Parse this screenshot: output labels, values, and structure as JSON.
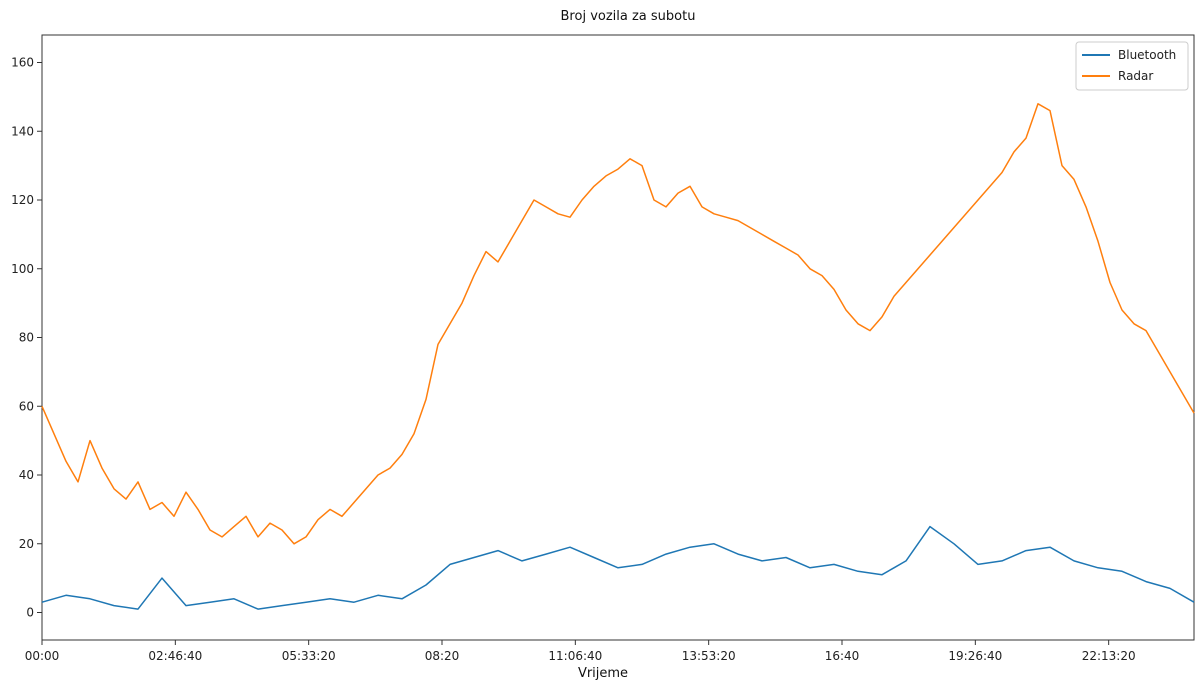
{
  "chart_data": {
    "type": "line",
    "title": "Broj vozila za subotu",
    "xlabel": "Vrijeme",
    "ylabel": "",
    "xlim": [
      0,
      86400
    ],
    "ylim": [
      -8,
      168
    ],
    "x_ticks": [
      {
        "value": 0,
        "label": "00:00"
      },
      {
        "value": 10000,
        "label": "02:46:40"
      },
      {
        "value": 20000,
        "label": "05:33:20"
      },
      {
        "value": 30000,
        "label": "08:20"
      },
      {
        "value": 40000,
        "label": "11:06:40"
      },
      {
        "value": 50000,
        "label": "13:53:20"
      },
      {
        "value": 60000,
        "label": "16:40"
      },
      {
        "value": 70000,
        "label": "19:26:40"
      },
      {
        "value": 80000,
        "label": "22:13:20"
      }
    ],
    "y_ticks": [
      0,
      20,
      40,
      60,
      80,
      100,
      120,
      140,
      160
    ],
    "grid": false,
    "legend_position": "top-right",
    "series": [
      {
        "name": "Bluetooth",
        "color": "#1f77b4",
        "x": [
          0,
          1800,
          3600,
          5400,
          7200,
          9000,
          10800,
          12600,
          14400,
          16200,
          18000,
          19800,
          21600,
          23400,
          25200,
          27000,
          28800,
          30600,
          32400,
          34200,
          36000,
          37800,
          39600,
          41400,
          43200,
          45000,
          46800,
          48600,
          50400,
          52200,
          54000,
          55800,
          57600,
          59400,
          61200,
          63000,
          63900,
          64800,
          66600,
          68400,
          70200,
          72000,
          73800,
          75600,
          77400,
          79200,
          81000,
          82800,
          84600,
          86400
        ],
        "y": [
          3,
          5,
          4,
          2,
          1,
          10,
          2,
          3,
          4,
          1,
          2,
          3,
          4,
          3,
          5,
          4,
          8,
          14,
          16,
          18,
          15,
          17,
          19,
          16,
          13,
          14,
          17,
          19,
          20,
          17,
          15,
          16,
          13,
          14,
          12,
          11,
          13,
          15,
          25,
          20,
          14,
          15,
          18,
          19,
          15,
          13,
          12,
          9,
          7,
          3
        ]
      },
      {
        "name": "Radar",
        "color": "#ff7f0e",
        "x": [
          0,
          900,
          1800,
          2700,
          3600,
          4500,
          5400,
          6300,
          7200,
          8100,
          9000,
          9900,
          10800,
          11700,
          12600,
          13500,
          14400,
          15300,
          16200,
          17100,
          18000,
          18900,
          19800,
          20700,
          21600,
          22500,
          23400,
          24300,
          25200,
          26100,
          27000,
          27900,
          28800,
          29700,
          30600,
          31500,
          32400,
          33300,
          34200,
          35100,
          36000,
          36900,
          37800,
          38700,
          39600,
          40500,
          41400,
          42300,
          43200,
          44100,
          45000,
          45900,
          46800,
          47700,
          48600,
          49500,
          50400,
          51300,
          52200,
          53100,
          54000,
          54900,
          55800,
          56700,
          57600,
          58500,
          59400,
          60300,
          61200,
          62100,
          63000,
          63900,
          64800,
          65700,
          66600,
          67500,
          68400,
          69300,
          70200,
          71100,
          72000,
          72900,
          73800,
          74700,
          75600,
          76500,
          77400,
          78300,
          79200,
          80100,
          81000,
          81900,
          82800,
          83700,
          84600,
          85500,
          86400
        ],
        "y": [
          60,
          52,
          44,
          38,
          50,
          42,
          36,
          33,
          38,
          30,
          32,
          28,
          35,
          30,
          24,
          22,
          25,
          28,
          22,
          26,
          24,
          20,
          22,
          27,
          30,
          28,
          32,
          36,
          40,
          42,
          46,
          52,
          62,
          78,
          84,
          90,
          98,
          105,
          102,
          108,
          114,
          120,
          118,
          116,
          115,
          120,
          124,
          127,
          129,
          132,
          130,
          120,
          118,
          122,
          124,
          118,
          116,
          115,
          114,
          112,
          110,
          108,
          106,
          104,
          100,
          98,
          94,
          88,
          84,
          82,
          86,
          92,
          96,
          100,
          104,
          108,
          112,
          116,
          120,
          124,
          128,
          134,
          138,
          148,
          146,
          130,
          126,
          118,
          108,
          96,
          88,
          84,
          82,
          76,
          70,
          64,
          58
        ]
      }
    ]
  }
}
